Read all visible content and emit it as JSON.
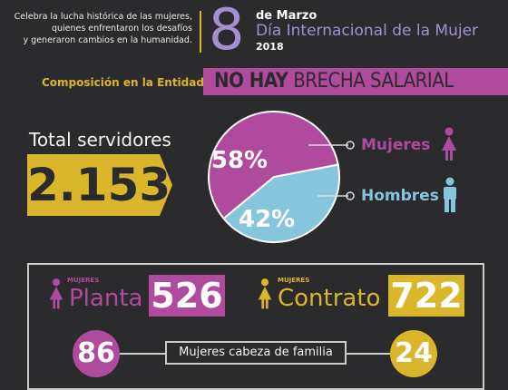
{
  "header": {
    "tagline_line1": "Celebra la lucha histórica de las mujeres,",
    "tagline_line2": "quienes enfrentaron los desafíos",
    "tagline_line3": "y generaron cambios en la humanidad.",
    "day": "8",
    "month": "de Marzo",
    "event": "Día Internacional de la Mujer",
    "year": "2018"
  },
  "composition": {
    "label": "Composición en la Entidad",
    "banner_bold": "NO HAY",
    "banner_rest": "BRECHA SALARIAL"
  },
  "total": {
    "label": "Total servidores",
    "value": "2.153"
  },
  "chart_data": {
    "type": "pie",
    "slices": [
      {
        "name": "Mujeres",
        "label": "58%",
        "value": 58,
        "color": "#b04a9c"
      },
      {
        "name": "Hombres",
        "label": "42%",
        "value": 42,
        "color": "#86c6dd"
      }
    ]
  },
  "legend": {
    "mujeres": "Mujeres",
    "hombres": "Hombres"
  },
  "breakdown": {
    "planta": {
      "small": "MUJERES",
      "word": "Planta",
      "value": "526"
    },
    "contrato": {
      "small": "MUJERES",
      "word": "Contrato",
      "value": "722"
    },
    "cabeza": {
      "label": "Mujeres cabeza de familia",
      "left_value": "86",
      "right_value": "24"
    }
  },
  "colors": {
    "background": "#2b2b2e",
    "magenta": "#b04a9c",
    "light_blue": "#86c6dd",
    "gold": "#d9b62a",
    "lavender": "#a58fd0"
  },
  "icons": [
    "female-icon",
    "male-icon"
  ]
}
